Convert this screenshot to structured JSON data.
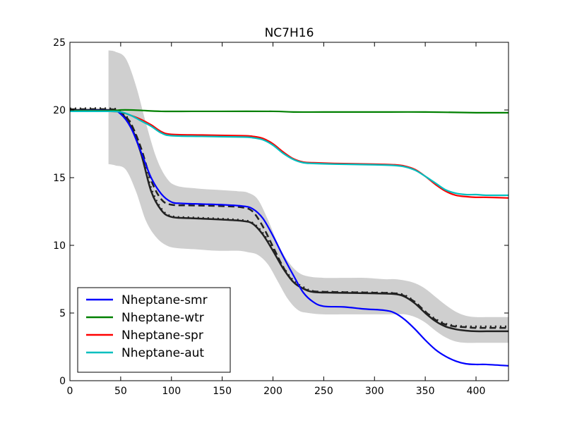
{
  "chart_data": {
    "type": "line",
    "title": "NC7H16",
    "xlabel": "",
    "ylabel": "",
    "xlim": [
      0,
      432
    ],
    "ylim": [
      0,
      25
    ],
    "xticks": [
      0,
      50,
      100,
      150,
      200,
      250,
      300,
      350,
      400
    ],
    "yticks": [
      0,
      5,
      10,
      15,
      20,
      25
    ],
    "grid": false,
    "legend_position": "lower-left",
    "band": {
      "x": [
        38,
        45,
        55,
        65,
        75,
        85,
        95,
        105,
        125,
        145,
        165,
        175,
        185,
        195,
        205,
        215,
        225,
        235,
        250,
        270,
        290,
        310,
        320,
        330,
        340,
        350,
        360,
        370,
        380,
        390,
        400,
        410,
        420,
        432
      ],
      "upper": [
        24.4,
        24.3,
        23.8,
        21.8,
        19.0,
        16.5,
        15.0,
        14.4,
        14.2,
        14.1,
        14.0,
        13.9,
        13.4,
        11.9,
        10.1,
        8.8,
        8.0,
        7.7,
        7.6,
        7.6,
        7.6,
        7.5,
        7.5,
        7.4,
        7.2,
        6.8,
        6.2,
        5.6,
        5.1,
        4.8,
        4.7,
        4.7,
        4.7,
        4.7
      ],
      "lower": [
        16.0,
        15.9,
        15.6,
        14.0,
        11.8,
        10.6,
        10.0,
        9.8,
        9.7,
        9.6,
        9.6,
        9.5,
        9.3,
        8.6,
        7.3,
        6.0,
        5.2,
        5.0,
        4.9,
        4.9,
        4.9,
        4.9,
        4.9,
        4.9,
        4.7,
        4.3,
        3.7,
        3.2,
        2.9,
        2.8,
        2.8,
        2.8,
        2.8,
        2.8
      ]
    },
    "reference_lines": [
      {
        "style": "solid",
        "color": "#222222",
        "x": [
          0,
          40,
          50,
          60,
          70,
          80,
          90,
          100,
          120,
          150,
          170,
          180,
          190,
          200,
          210,
          220,
          230,
          240,
          260,
          300,
          320,
          330,
          340,
          350,
          360,
          370,
          380,
          390,
          400,
          410,
          432
        ],
        "y": [
          20.0,
          20.0,
          19.8,
          18.8,
          16.8,
          14.0,
          12.6,
          12.1,
          12.0,
          11.9,
          11.8,
          11.6,
          10.8,
          9.6,
          8.3,
          7.3,
          6.8,
          6.55,
          6.5,
          6.45,
          6.4,
          6.2,
          5.7,
          5.0,
          4.4,
          4.0,
          3.8,
          3.7,
          3.65,
          3.65,
          3.65
        ]
      },
      {
        "style": "dashed",
        "color": "#222222",
        "x": [
          0,
          40,
          50,
          60,
          70,
          80,
          90,
          100,
          120,
          150,
          170,
          180,
          190,
          200,
          210,
          220,
          230,
          240,
          260,
          300,
          320,
          330,
          340,
          350,
          360,
          370,
          380,
          390,
          400,
          410,
          432
        ],
        "y": [
          20.05,
          20.05,
          19.85,
          19.0,
          17.2,
          14.8,
          13.4,
          13.0,
          12.95,
          12.9,
          12.8,
          12.5,
          11.4,
          9.9,
          8.4,
          7.3,
          6.8,
          6.6,
          6.55,
          6.5,
          6.45,
          6.25,
          5.8,
          5.1,
          4.5,
          4.15,
          4.0,
          3.95,
          3.9,
          3.9,
          3.9
        ]
      },
      {
        "style": "dotted",
        "color": "#222222",
        "x": [
          0,
          40,
          50,
          60,
          70,
          80,
          90,
          100,
          120,
          150,
          170,
          180,
          190,
          200,
          210,
          220,
          230,
          240,
          260,
          300,
          320,
          330,
          340,
          350,
          360,
          370,
          380,
          390,
          400,
          410,
          432
        ],
        "y": [
          20.1,
          20.1,
          19.9,
          19.0,
          16.9,
          14.2,
          12.7,
          12.15,
          12.05,
          11.95,
          11.85,
          11.65,
          10.9,
          9.7,
          8.4,
          7.4,
          6.9,
          6.6,
          6.55,
          6.5,
          6.45,
          6.3,
          5.8,
          5.1,
          4.55,
          4.2,
          4.05,
          4.0,
          4.0,
          4.0,
          4.0
        ]
      }
    ],
    "series": [
      {
        "name": "Nheptane-smr",
        "color": "#0000ff",
        "x": [
          0,
          40,
          50,
          60,
          70,
          80,
          90,
          100,
          110,
          130,
          150,
          170,
          180,
          190,
          200,
          210,
          220,
          230,
          240,
          250,
          270,
          290,
          310,
          320,
          330,
          340,
          350,
          360,
          370,
          380,
          390,
          400,
          410,
          432
        ],
        "y": [
          19.95,
          19.95,
          19.7,
          18.7,
          16.9,
          15.0,
          13.8,
          13.2,
          13.1,
          13.05,
          13.0,
          12.9,
          12.7,
          12.0,
          10.7,
          9.2,
          7.8,
          6.5,
          5.8,
          5.5,
          5.45,
          5.3,
          5.2,
          5.0,
          4.5,
          3.8,
          3.0,
          2.3,
          1.8,
          1.45,
          1.25,
          1.2,
          1.2,
          1.1
        ]
      },
      {
        "name": "Nheptane-wtr",
        "color": "#008000",
        "x": [
          0,
          40,
          50,
          60,
          70,
          90,
          120,
          150,
          200,
          220,
          250,
          300,
          350,
          400,
          432
        ],
        "y": [
          19.95,
          19.95,
          20.0,
          20.0,
          19.97,
          19.9,
          19.9,
          19.9,
          19.9,
          19.85,
          19.85,
          19.85,
          19.85,
          19.8,
          19.8
        ]
      },
      {
        "name": "Nheptane-spr",
        "color": "#ff0000",
        "x": [
          0,
          40,
          50,
          60,
          70,
          80,
          90,
          100,
          130,
          170,
          180,
          190,
          200,
          210,
          220,
          230,
          240,
          260,
          300,
          320,
          330,
          340,
          350,
          360,
          370,
          380,
          390,
          400,
          410,
          432
        ],
        "y": [
          19.9,
          19.9,
          19.85,
          19.6,
          19.3,
          18.9,
          18.4,
          18.2,
          18.15,
          18.1,
          18.05,
          17.9,
          17.5,
          16.9,
          16.4,
          16.15,
          16.1,
          16.05,
          16.0,
          15.95,
          15.85,
          15.6,
          15.1,
          14.5,
          14.0,
          13.7,
          13.6,
          13.55,
          13.55,
          13.5
        ]
      },
      {
        "name": "Nheptane-aut",
        "color": "#00bfbf",
        "x": [
          0,
          40,
          50,
          60,
          70,
          80,
          90,
          100,
          130,
          170,
          180,
          190,
          200,
          210,
          220,
          230,
          240,
          260,
          300,
          320,
          330,
          340,
          350,
          360,
          370,
          380,
          390,
          400,
          410,
          432
        ],
        "y": [
          19.9,
          19.9,
          19.85,
          19.6,
          19.2,
          18.8,
          18.3,
          18.1,
          18.05,
          18.0,
          17.95,
          17.8,
          17.4,
          16.8,
          16.35,
          16.1,
          16.05,
          16.0,
          15.95,
          15.9,
          15.8,
          15.55,
          15.1,
          14.6,
          14.1,
          13.85,
          13.75,
          13.75,
          13.7,
          13.7
        ]
      }
    ]
  }
}
